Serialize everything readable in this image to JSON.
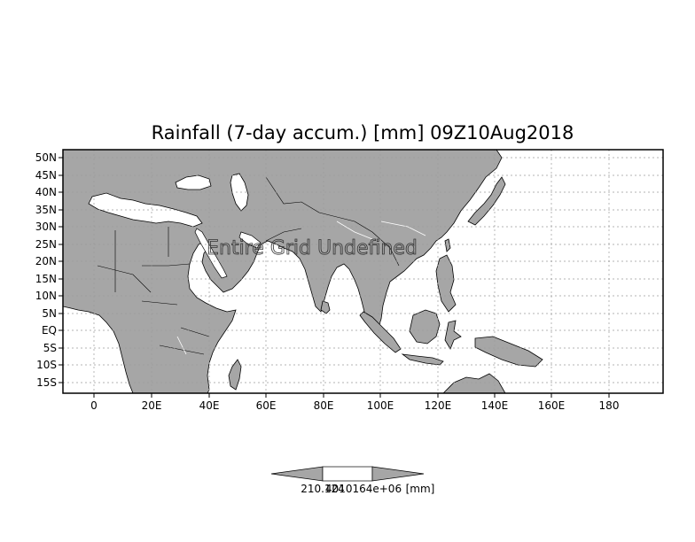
{
  "map": {
    "title": "Rainfall (7-day accum.) [mm] 09Z10Aug2018",
    "overlay_text": "Entire Grid Undefined",
    "lat_labels": [
      "50N",
      "45N",
      "40N",
      "35N",
      "30N",
      "25N",
      "20N",
      "15N",
      "10N",
      "5N",
      "EQ",
      "5S",
      "10S",
      "15S"
    ],
    "lon_labels": [
      "0",
      "20E",
      "40E",
      "60E",
      "80E",
      "100E",
      "120E",
      "140E",
      "160E",
      "180"
    ],
    "colors": {
      "land": "#a6a6a6",
      "ocean": "#ffffff",
      "coast": "#000000",
      "grid": "#9a9a9a",
      "colorbar_arrow": "#a6a6a6"
    }
  },
  "colorbar": {
    "label": "210.124",
    "label_overlap": "4010164e+06",
    "units": "[mm]"
  }
}
